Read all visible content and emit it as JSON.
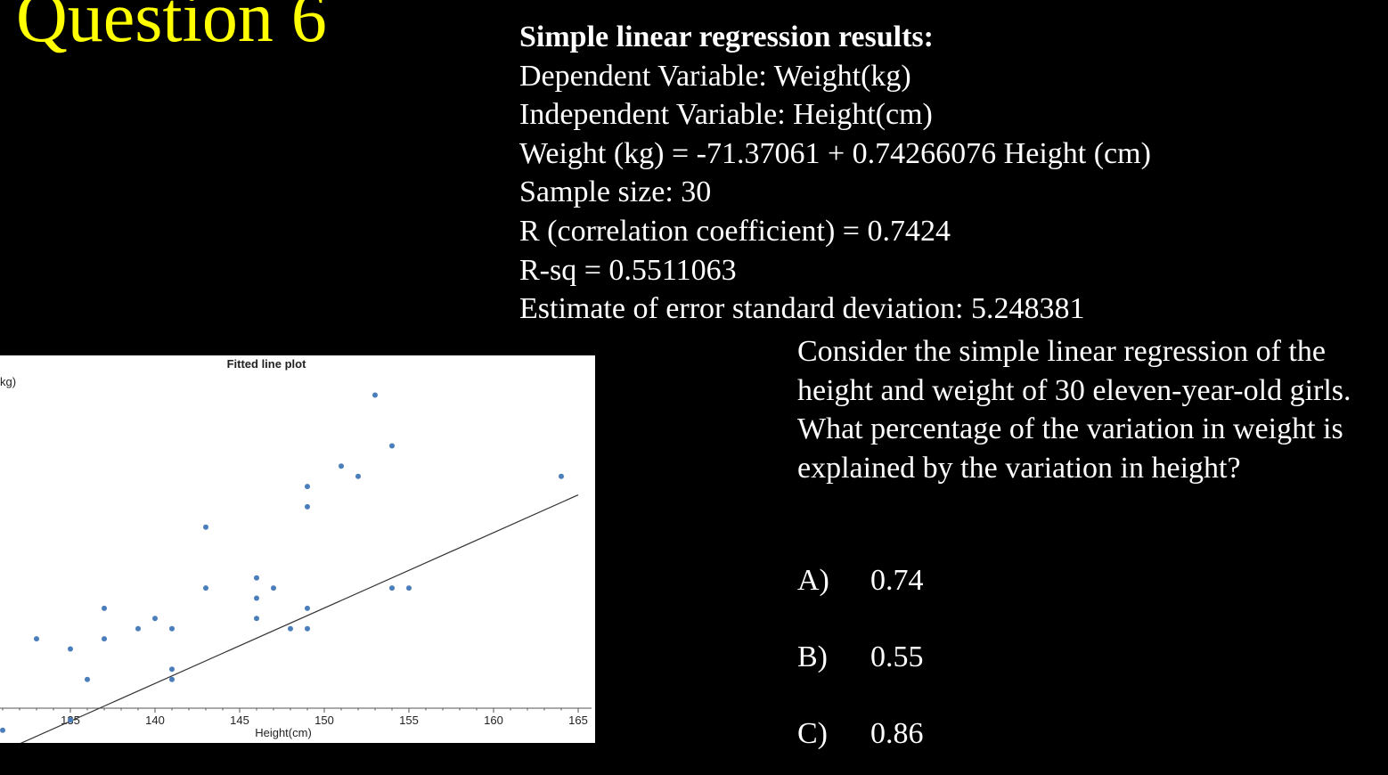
{
  "title": "Question 6",
  "results": {
    "heading": "Simple linear regression results:",
    "lines": [
      "Dependent Variable: Weight(kg)",
      "Independent Variable: Height(cm)",
      "Weight (kg) = -71.37061 + 0.74266076 Height (cm)",
      "Sample size: 30",
      "R (correlation coefficient) = 0.7424",
      "R-sq = 0.5511063",
      "Estimate of error standard deviation: 5.248381"
    ]
  },
  "question": "Consider the simple linear regression of the height and weight of 30 eleven-year-old girls. What percentage of the variation in weight is explained by the variation in height?",
  "options": [
    {
      "letter": "A)",
      "value": "0.74"
    },
    {
      "letter": "B)",
      "value": "0.55"
    },
    {
      "letter": "C)",
      "value": "0.86"
    }
  ],
  "colors": {
    "title": "#ffff00",
    "text": "#ffffff",
    "background": "#000000",
    "points": "#4a7ebb",
    "fit_line": "#333333"
  },
  "chart_data": {
    "type": "scatter",
    "title": "Fitted line plot",
    "xlabel": "Height(cm)",
    "ylabel_visible": "kg)",
    "xlim": [
      131,
      165.5
    ],
    "ylim": [
      27,
      61
    ],
    "xticks": [
      135,
      140,
      145,
      150,
      155,
      160,
      165
    ],
    "grid": false,
    "points": [
      {
        "x": 131,
        "y": 28
      },
      {
        "x": 133,
        "y": 37
      },
      {
        "x": 135,
        "y": 29
      },
      {
        "x": 135,
        "y": 36
      },
      {
        "x": 136,
        "y": 33
      },
      {
        "x": 137,
        "y": 37
      },
      {
        "x": 137,
        "y": 40
      },
      {
        "x": 139,
        "y": 38
      },
      {
        "x": 140,
        "y": 39
      },
      {
        "x": 141,
        "y": 33
      },
      {
        "x": 141,
        "y": 34
      },
      {
        "x": 141,
        "y": 38
      },
      {
        "x": 143,
        "y": 42
      },
      {
        "x": 143,
        "y": 48
      },
      {
        "x": 146,
        "y": 39
      },
      {
        "x": 146,
        "y": 41
      },
      {
        "x": 146,
        "y": 43
      },
      {
        "x": 147,
        "y": 42
      },
      {
        "x": 148,
        "y": 38
      },
      {
        "x": 149,
        "y": 38
      },
      {
        "x": 149,
        "y": 40
      },
      {
        "x": 149,
        "y": 50
      },
      {
        "x": 149,
        "y": 52
      },
      {
        "x": 151,
        "y": 54
      },
      {
        "x": 152,
        "y": 53
      },
      {
        "x": 153,
        "y": 61
      },
      {
        "x": 154,
        "y": 42
      },
      {
        "x": 154,
        "y": 56
      },
      {
        "x": 155,
        "y": 42
      },
      {
        "x": 164,
        "y": 53
      }
    ],
    "fit": {
      "intercept": -71.37061,
      "slope": 0.74266076,
      "x_range": [
        131,
        165
      ]
    }
  }
}
